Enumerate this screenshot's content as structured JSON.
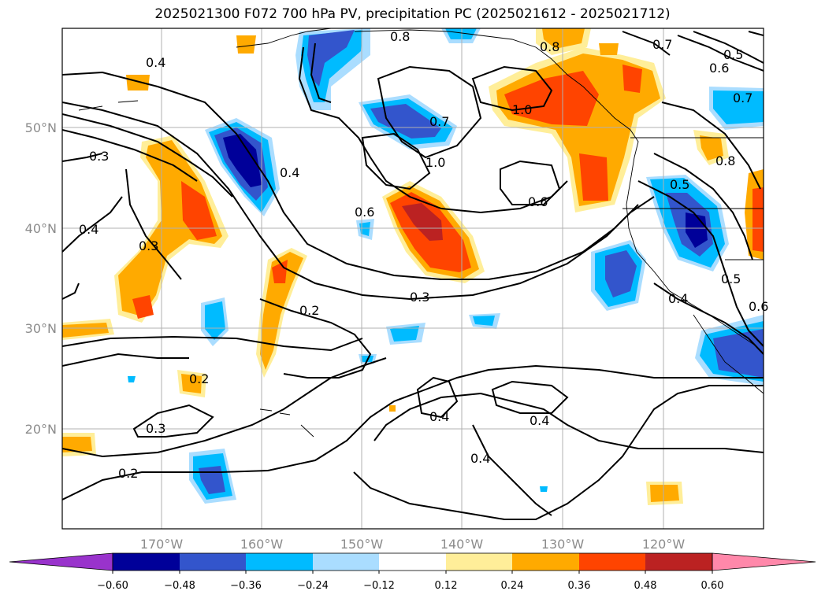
{
  "title": "2025021300 F072 700 hPa PV, precipitation PC (2025021612 - 2025021712)",
  "map": {
    "lat_labels": [
      "50°N",
      "40°N",
      "30°N",
      "20°N"
    ],
    "lon_labels": [
      "170°W",
      "160°W",
      "150°W",
      "140°W",
      "130°W",
      "120°W"
    ],
    "contour_labels": [
      "0.8",
      "0.8",
      "0.7",
      "0.5",
      "0.6",
      "0.7",
      "1.0",
      "0.7",
      "1.0",
      "0.4",
      "0.6",
      "0.6",
      "0.5",
      "0.4",
      "0.3",
      "0.4",
      "0.3",
      "0.2",
      "0.3",
      "0.2",
      "0.3",
      "0.4",
      "0.4",
      "0.4",
      "0.2",
      "0.4",
      "0.5",
      "0.6",
      "0.8"
    ]
  },
  "colorbar": {
    "ticks": [
      "−0.60",
      "−0.48",
      "−0.36",
      "−0.24",
      "−0.12",
      "0.12",
      "0.24",
      "0.36",
      "0.48",
      "0.60"
    ],
    "colors": [
      "#9933cc",
      "#000099",
      "#3355cc",
      "#00bbff",
      "#aaddff",
      "#ffffff",
      "#ffee99",
      "#ffaa00",
      "#ff4400",
      "#bb2222",
      "#ff88aa"
    ]
  },
  "shading_colors": {
    "neg_light": "#aaddff",
    "neg_cyan": "#00bbff",
    "neg_blue": "#3355cc",
    "neg_navy": "#000099",
    "pos_yellow": "#ffee99",
    "pos_orange": "#ffaa00",
    "pos_redorange": "#ff4400",
    "pos_darkred": "#bb2222"
  }
}
